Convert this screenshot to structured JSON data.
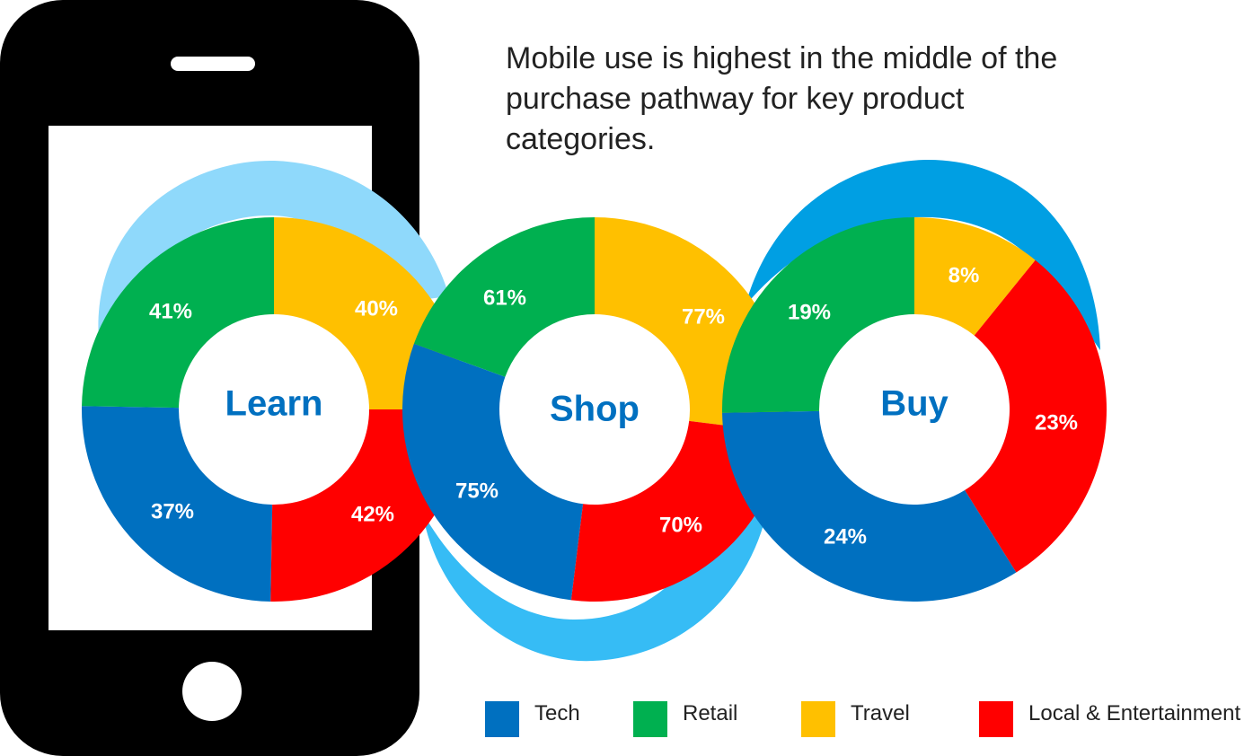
{
  "title_lines": [
    "Mobile use is highest in the middle of the",
    "purchase pathway for key product",
    "categories."
  ],
  "colors": {
    "Tech": "#0070c0",
    "Retail": "#00b050",
    "Travel": "#ffc000",
    "Local & Entertainment": "#ff0000",
    "light_blue": "#8fd9fb",
    "mid_blue": "#36bcf5",
    "bright_blue": "#009fe3",
    "phone": "#000000"
  },
  "chart_data": {
    "type": "donut",
    "categories": [
      "Tech",
      "Retail",
      "Travel",
      "Local & Entertainment"
    ],
    "stages": [
      {
        "name": "Learn",
        "values": {
          "Tech": 37,
          "Retail": 41,
          "Travel": 40,
          "Local & Entertainment": 42
        }
      },
      {
        "name": "Shop",
        "values": {
          "Tech": 75,
          "Retail": 61,
          "Travel": 77,
          "Local & Entertainment": 70
        }
      },
      {
        "name": "Buy",
        "values": {
          "Tech": 24,
          "Retail": 19,
          "Travel": 8,
          "Local & Entertainment": 23
        }
      }
    ],
    "labels": {
      "Learn": {
        "Tech": "37%",
        "Retail": "41%",
        "Travel": "40%",
        "Local & Entertainment": "42%"
      },
      "Shop": {
        "Tech": "75%",
        "Retail": "61%",
        "Travel": "77%",
        "Local & Entertainment": "70%"
      },
      "Buy": {
        "Tech": "24%",
        "Retail": "19%",
        "Travel": "8%",
        "Local & Entertainment": "23%"
      }
    },
    "legend": [
      "Tech",
      "Retail",
      "Travel",
      "Local & Entertainment"
    ],
    "legend_position": "bottom-right"
  }
}
